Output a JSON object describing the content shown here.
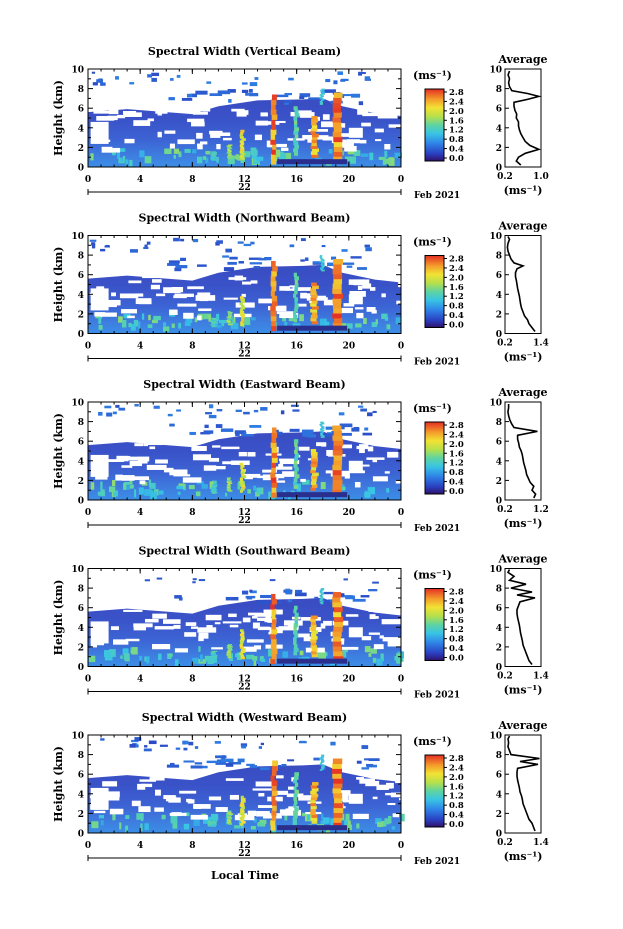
{
  "figure": {
    "xlabel": "Local Time",
    "date_label": "Feb 2021",
    "colorbar_unit": "(ms⁻¹)"
  },
  "chart_data": [
    {
      "type": "heatmap",
      "title": "Spectral Width (Vertical Beam)",
      "ylabel": "Height (km)",
      "xlabel": "",
      "xticks": [
        "0",
        "4",
        "8",
        "12",
        "16",
        "20",
        "0"
      ],
      "day_label": "22",
      "ylim": [
        0,
        10
      ],
      "yticks": [
        "0",
        "2",
        "4",
        "6",
        "8",
        "10"
      ],
      "colorbar_ticks": [
        "2.8",
        "2.4",
        "2.0",
        "1.6",
        "1.2",
        "0.8",
        "0.4",
        "0.0"
      ],
      "colorbar_range": [
        0,
        2.8
      ],
      "upper_cloud": true,
      "average": {
        "title": "Average",
        "xlabel": "(ms⁻¹)",
        "xticks": [
          "0.2",
          "1.0"
        ],
        "xlim": [
          0.2,
          1.0
        ],
        "height": [
          0.2,
          0.6,
          1.0,
          1.4,
          1.8,
          2.2,
          2.6,
          3.0,
          3.4,
          3.8,
          4.2,
          4.6,
          5.0,
          5.4,
          5.8,
          6.2,
          6.6,
          6.9,
          7.2,
          7.5,
          7.8,
          8.2,
          8.6,
          9.0,
          9.4,
          9.8
        ],
        "value": [
          0.55,
          0.45,
          0.5,
          0.65,
          0.95,
          0.75,
          0.65,
          0.6,
          0.55,
          0.52,
          0.5,
          0.5,
          0.45,
          0.46,
          0.42,
          0.4,
          0.4,
          0.7,
          0.95,
          0.7,
          0.35,
          0.3,
          0.28,
          0.3,
          0.27,
          0.3
        ]
      }
    },
    {
      "type": "heatmap",
      "title": "Spectral Width (Northward Beam)",
      "ylabel": "Height (km)",
      "xlabel": "",
      "xticks": [
        "0",
        "4",
        "8",
        "12",
        "16",
        "20",
        "0"
      ],
      "day_label": "22",
      "ylim": [
        0,
        10
      ],
      "yticks": [
        "0",
        "2",
        "4",
        "6",
        "8",
        "10"
      ],
      "colorbar_ticks": [
        "2.8",
        "2.4",
        "2.0",
        "1.6",
        "1.2",
        "0.8",
        "0.4",
        "0.0"
      ],
      "colorbar_range": [
        0,
        2.8
      ],
      "upper_cloud": true,
      "average": {
        "title": "Average",
        "xlabel": "(ms⁻¹)",
        "xticks": [
          "0.2",
          "1.4"
        ],
        "xlim": [
          0.2,
          1.4
        ],
        "height": [
          0.2,
          0.6,
          1.0,
          1.4,
          1.8,
          2.2,
          2.6,
          3.0,
          3.4,
          3.8,
          4.2,
          4.6,
          5.0,
          5.4,
          5.8,
          6.2,
          6.6,
          6.9,
          7.2,
          7.6,
          8.0,
          8.4,
          8.8,
          9.2,
          9.6,
          9.9
        ],
        "value": [
          1.2,
          1.1,
          1.0,
          0.95,
          0.85,
          0.8,
          0.75,
          0.72,
          0.7,
          0.68,
          0.65,
          0.62,
          0.6,
          0.58,
          0.55,
          0.55,
          0.6,
          0.8,
          0.5,
          0.4,
          0.35,
          0.3,
          0.28,
          0.3,
          0.35,
          0.3
        ]
      }
    },
    {
      "type": "heatmap",
      "title": "Spectral Width (Eastward Beam)",
      "ylabel": "Height (km)",
      "xlabel": "",
      "xticks": [
        "0",
        "4",
        "8",
        "12",
        "16",
        "20",
        "0"
      ],
      "day_label": "22",
      "ylim": [
        0,
        10
      ],
      "yticks": [
        "0",
        "2",
        "4",
        "6",
        "8",
        "10"
      ],
      "colorbar_ticks": [
        "2.8",
        "2.4",
        "2.0",
        "1.6",
        "1.2",
        "0.8",
        "0.4",
        "0.0"
      ],
      "colorbar_range": [
        0,
        2.8
      ],
      "upper_cloud": true,
      "average": {
        "title": "Average",
        "xlabel": "(ms⁻¹)",
        "xticks": [
          "0.2",
          "1.2"
        ],
        "xlim": [
          0.2,
          1.2
        ],
        "height": [
          0.2,
          0.6,
          1.0,
          1.4,
          1.8,
          2.2,
          2.6,
          3.0,
          3.4,
          3.8,
          4.2,
          4.6,
          5.0,
          5.4,
          5.8,
          6.2,
          6.6,
          7.0,
          7.4,
          7.8,
          8.2,
          8.6,
          9.0,
          9.4,
          9.8
        ],
        "value": [
          1.0,
          1.05,
          0.95,
          1.0,
          0.9,
          0.85,
          0.8,
          0.78,
          0.75,
          0.72,
          0.7,
          0.68,
          0.65,
          0.6,
          0.58,
          0.55,
          0.55,
          1.1,
          0.45,
          0.38,
          0.33,
          0.3,
          0.28,
          0.3,
          0.3
        ]
      }
    },
    {
      "type": "heatmap",
      "title": "Spectral Width (Southward Beam)",
      "ylabel": "Height (km)",
      "xlabel": "",
      "xticks": [
        "0",
        "4",
        "8",
        "12",
        "16",
        "20",
        "0"
      ],
      "day_label": "22",
      "ylim": [
        0,
        10
      ],
      "yticks": [
        "0",
        "2",
        "4",
        "6",
        "8",
        "10"
      ],
      "colorbar_ticks": [
        "2.8",
        "2.4",
        "2.0",
        "1.6",
        "1.2",
        "0.8",
        "0.4",
        "0.0"
      ],
      "colorbar_range": [
        0,
        2.8
      ],
      "upper_cloud": false,
      "average": {
        "title": "Average",
        "xlabel": "(ms⁻¹)",
        "xticks": [
          "0.2",
          "1.4"
        ],
        "xlim": [
          0.2,
          1.4
        ],
        "height": [
          0.2,
          0.6,
          1.0,
          1.4,
          1.8,
          2.2,
          2.6,
          3.0,
          3.4,
          3.8,
          4.2,
          4.6,
          5.0,
          5.4,
          5.8,
          6.2,
          6.6,
          7.0,
          7.3,
          7.6,
          8.0,
          8.4,
          8.8,
          9.2,
          9.6,
          9.9
        ],
        "value": [
          1.1,
          1.0,
          0.95,
          0.9,
          0.85,
          0.8,
          0.78,
          0.75,
          0.72,
          0.7,
          0.68,
          0.65,
          0.62,
          0.6,
          0.6,
          0.65,
          0.7,
          1.2,
          0.6,
          1.1,
          0.4,
          0.9,
          0.35,
          0.5,
          0.3,
          0.35
        ]
      }
    },
    {
      "type": "heatmap",
      "title": "Spectral Width (Westward Beam)",
      "ylabel": "Height (km)",
      "xlabel": "",
      "xticks": [
        "0",
        "4",
        "8",
        "12",
        "16",
        "20",
        "0"
      ],
      "day_label": "22",
      "ylim": [
        0,
        10
      ],
      "yticks": [
        "0",
        "2",
        "4",
        "6",
        "8",
        "10"
      ],
      "colorbar_ticks": [
        "2.8",
        "2.4",
        "2.0",
        "1.6",
        "1.2",
        "0.8",
        "0.4",
        "0.0"
      ],
      "colorbar_range": [
        0,
        2.8
      ],
      "upper_cloud": true,
      "average": {
        "title": "Average",
        "xlabel": "(ms⁻¹)",
        "xticks": [
          "0.2",
          "1.4"
        ],
        "xlim": [
          0.2,
          1.4
        ],
        "height": [
          0.2,
          0.6,
          1.0,
          1.4,
          1.8,
          2.2,
          2.6,
          3.0,
          3.4,
          3.8,
          4.2,
          4.6,
          5.0,
          5.4,
          5.8,
          6.2,
          6.6,
          7.0,
          7.3,
          7.6,
          8.0,
          8.4,
          8.8,
          9.2,
          9.6,
          9.9
        ],
        "value": [
          1.2,
          1.15,
          1.1,
          1.0,
          0.95,
          0.9,
          0.85,
          0.8,
          0.78,
          0.75,
          0.7,
          0.68,
          0.65,
          0.62,
          0.6,
          0.6,
          0.62,
          1.3,
          0.7,
          1.35,
          0.4,
          0.35,
          0.3,
          0.32,
          0.3,
          0.35
        ]
      }
    }
  ]
}
